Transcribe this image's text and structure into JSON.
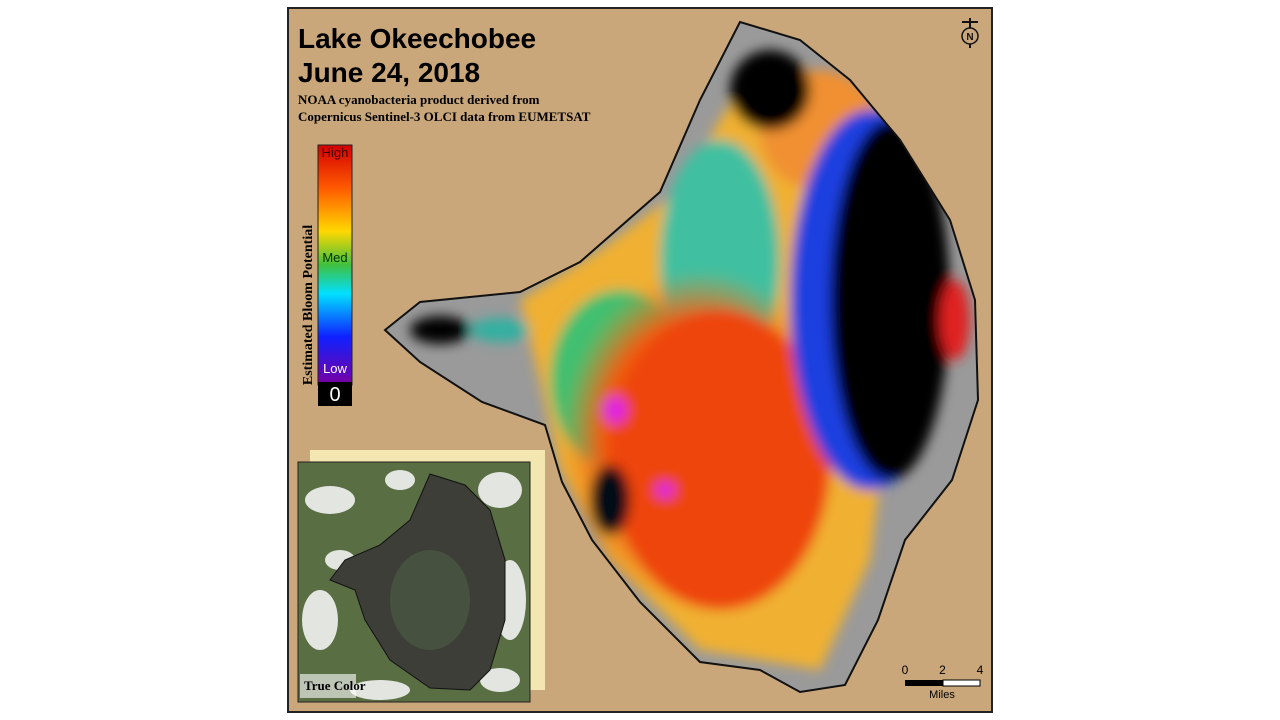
{
  "map": {
    "title": "Lake Okeechobee",
    "date": "June 24, 2018",
    "subtitle": [
      "NOAA cyanobacteria product derived from",
      "Copernicus Sentinel-3 OLCI data from EUMETSAT"
    ],
    "legend": {
      "axis_label": "Estimated Bloom Potential",
      "high": "High",
      "med": "Med",
      "low": "Low",
      "zero": "0"
    },
    "inset_label": "True Color",
    "north": "N",
    "scale_bar": {
      "ticks": [
        0,
        2,
        4
      ],
      "unit": "Miles"
    }
  }
}
